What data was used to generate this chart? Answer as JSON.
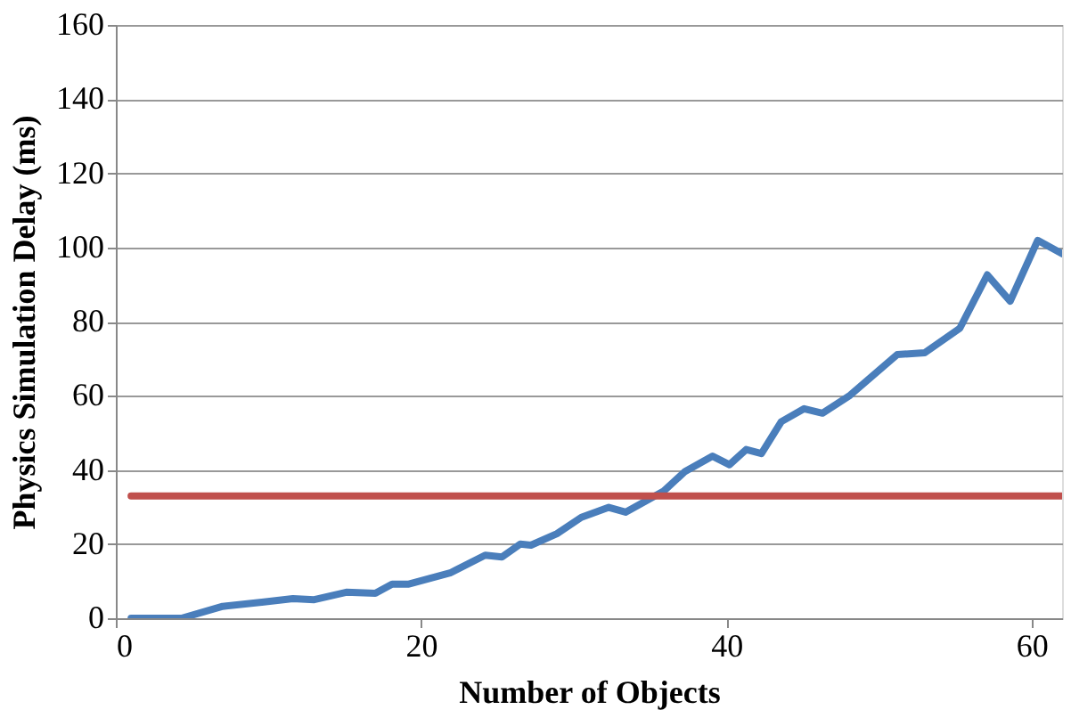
{
  "chart_data": {
    "type": "line",
    "xlabel": "Number of Objects",
    "ylabel": "Physics Simulation Delay (ms)",
    "xlim": [
      0,
      62
    ],
    "xticks": [
      0,
      20,
      40,
      60
    ],
    "ylim": [
      0,
      160
    ],
    "yticks": [
      0,
      20,
      40,
      60,
      80,
      100,
      120,
      140,
      160
    ],
    "grid": "y",
    "marker": "none",
    "line_style": "solid",
    "series": [
      {
        "color": "#4a7ebb",
        "x": [
          1,
          4.3,
          7,
          9.7,
          11.6,
          13,
          15.1,
          17,
          18.1,
          19.2,
          21.9,
          24.2,
          25.3,
          26.5,
          27.2,
          28.9,
          30.5,
          32.3,
          33.4,
          35.9,
          37.3,
          39.1,
          40.2,
          41.3,
          42.3,
          43.6,
          45.1,
          46.3,
          48.1,
          51.2,
          53,
          55.3,
          57.1,
          58.6,
          60.4,
          62
        ],
        "values": [
          0,
          0,
          3.2,
          4.4,
          5.3,
          5,
          7,
          6.7,
          9.2,
          9.2,
          12.2,
          17,
          16.5,
          20,
          19.7,
          22.8,
          27.2,
          29.9,
          28.6,
          34.3,
          39.6,
          43.7,
          41.4,
          45.5,
          44.4,
          53,
          56.5,
          55.3,
          60.1,
          71.1,
          71.6,
          78.2,
          92.6,
          85.5,
          101.9,
          98.3
        ]
      },
      {
        "color": "#c0504d",
        "x": [
          1,
          62
        ],
        "values": [
          33,
          33
        ]
      }
    ]
  }
}
